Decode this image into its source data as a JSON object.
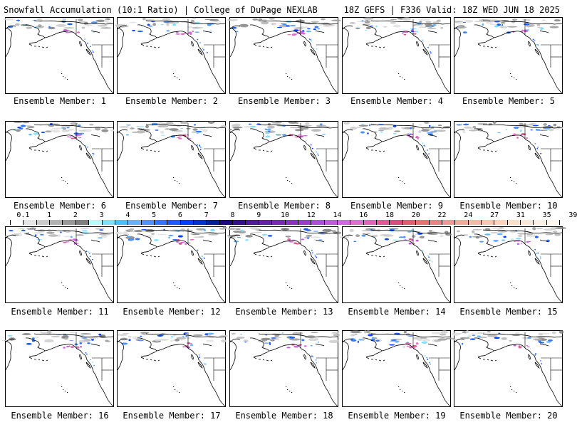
{
  "header": {
    "left": "Snowfall Accumulation (10:1 Ratio) | College of DuPage NEXLAB",
    "right": "18Z GEFS | F336 Valid: 18Z WED JUN 18 2025"
  },
  "members": [
    {
      "label": "Ensemble Member: 1"
    },
    {
      "label": "Ensemble Member: 2"
    },
    {
      "label": "Ensemble Member: 3"
    },
    {
      "label": "Ensemble Member: 4"
    },
    {
      "label": "Ensemble Member: 5"
    },
    {
      "label": "Ensemble Member: 6"
    },
    {
      "label": "Ensemble Member: 7"
    },
    {
      "label": "Ensemble Member: 8"
    },
    {
      "label": "Ensemble Member: 9"
    },
    {
      "label": "Ensemble Member: 10"
    },
    {
      "label": "Ensemble Member: 11"
    },
    {
      "label": "Ensemble Member: 12"
    },
    {
      "label": "Ensemble Member: 13"
    },
    {
      "label": "Ensemble Member: 14"
    },
    {
      "label": "Ensemble Member: 15"
    },
    {
      "label": "Ensemble Member: 16"
    },
    {
      "label": "Ensemble Member: 17"
    },
    {
      "label": "Ensemble Member: 18"
    },
    {
      "label": "Ensemble Member: 19"
    },
    {
      "label": "Ensemble Member: 20"
    }
  ],
  "colorbar": {
    "labels": [
      "0.1",
      "1",
      "2",
      "3",
      "4",
      "5",
      "6",
      "7",
      "8",
      "9",
      "10",
      "12",
      "14",
      "16",
      "18",
      "20",
      "22",
      "24",
      "27",
      "31",
      "35",
      "39"
    ],
    "colors": [
      "#ffffff",
      "#e6e6e6",
      "#cccccc",
      "#b3b3b3",
      "#999999",
      "#808080",
      "#b3ffff",
      "#80e0ff",
      "#4dc0ff",
      "#66b3ff",
      "#4d94ff",
      "#3377ff",
      "#1a5cff",
      "#0040ff",
      "#0033cc",
      "#002299",
      "#1a0a80",
      "#33118c",
      "#4d1a99",
      "#6622a6",
      "#7a2ab3",
      "#8c33bf",
      "#9e3ccc",
      "#b04dd9",
      "#c25ae0",
      "#d466e6",
      "#e070cc",
      "#e066b3",
      "#e05a99",
      "#d94d80",
      "#e06070",
      "#e67373",
      "#eb8585",
      "#f09999",
      "#f2aaa0",
      "#f5bbaa",
      "#f7c8b3",
      "#f9d5c0",
      "#fbe0cc",
      "#fde9d9",
      "#fef2e6",
      "#fff8f0"
    ]
  }
}
